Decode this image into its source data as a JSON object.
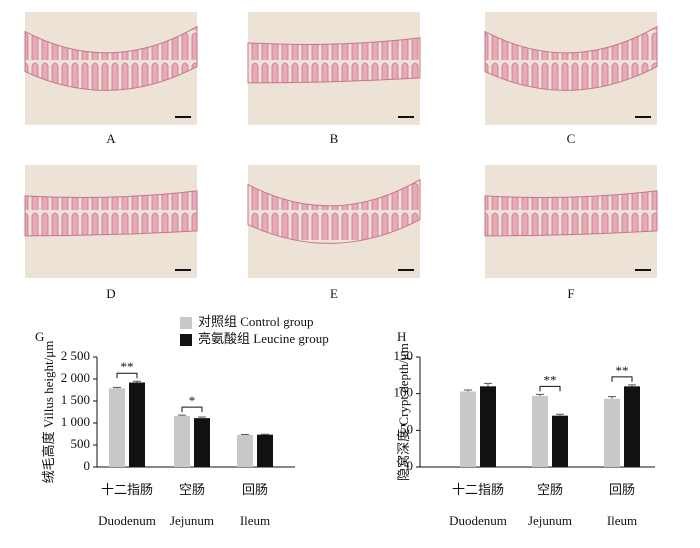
{
  "panels": {
    "labels": [
      "A",
      "B",
      "C",
      "D",
      "E",
      "F"
    ]
  },
  "chart_data": [
    {
      "type": "bar",
      "title": "G",
      "ylabel": "绒毛高度 Villus height/μm",
      "categories": [
        "十二指肠",
        "空肠",
        "回肠"
      ],
      "category_subtitles": [
        "Duodenum",
        "Jejunum",
        "Ileum"
      ],
      "series": [
        {
          "name": "对照组 Control group",
          "color": "#c8c8c8",
          "values": [
            1790,
            1160,
            730
          ],
          "errors": [
            20,
            20,
            10
          ]
        },
        {
          "name": "亮氨酸组 Leucine group",
          "color": "#111111",
          "values": [
            1920,
            1110,
            735
          ],
          "errors": [
            30,
            25,
            10
          ]
        }
      ],
      "significance": [
        "**",
        "*",
        null
      ],
      "ylim": [
        0,
        2500
      ],
      "yticks": [
        0,
        500,
        {
          "value": 1000,
          "label": "1 000"
        },
        {
          "value": 1500,
          "label": "1 500"
        },
        {
          "value": 2000,
          "label": "2 000"
        },
        {
          "value": 2500,
          "label": "2 500"
        }
      ]
    },
    {
      "type": "bar",
      "title": "H",
      "ylabel": "隐窝深度 Crypt depth/μm",
      "categories": [
        "十二指肠",
        "空肠",
        "回肠"
      ],
      "category_subtitles": [
        "Duodenum",
        "Jejunum",
        "Ileum"
      ],
      "series": [
        {
          "color": "#c8c8c8",
          "values": [
            103,
            97,
            93
          ],
          "errors": [
            2,
            2,
            3
          ]
        },
        {
          "color": "#111111",
          "values": [
            110,
            70,
            110
          ],
          "errors": [
            4,
            2,
            2
          ]
        }
      ],
      "significance": [
        null,
        "**",
        "**"
      ],
      "ylim": [
        0,
        150
      ],
      "yticks": [
        0,
        50,
        100,
        150
      ]
    }
  ]
}
